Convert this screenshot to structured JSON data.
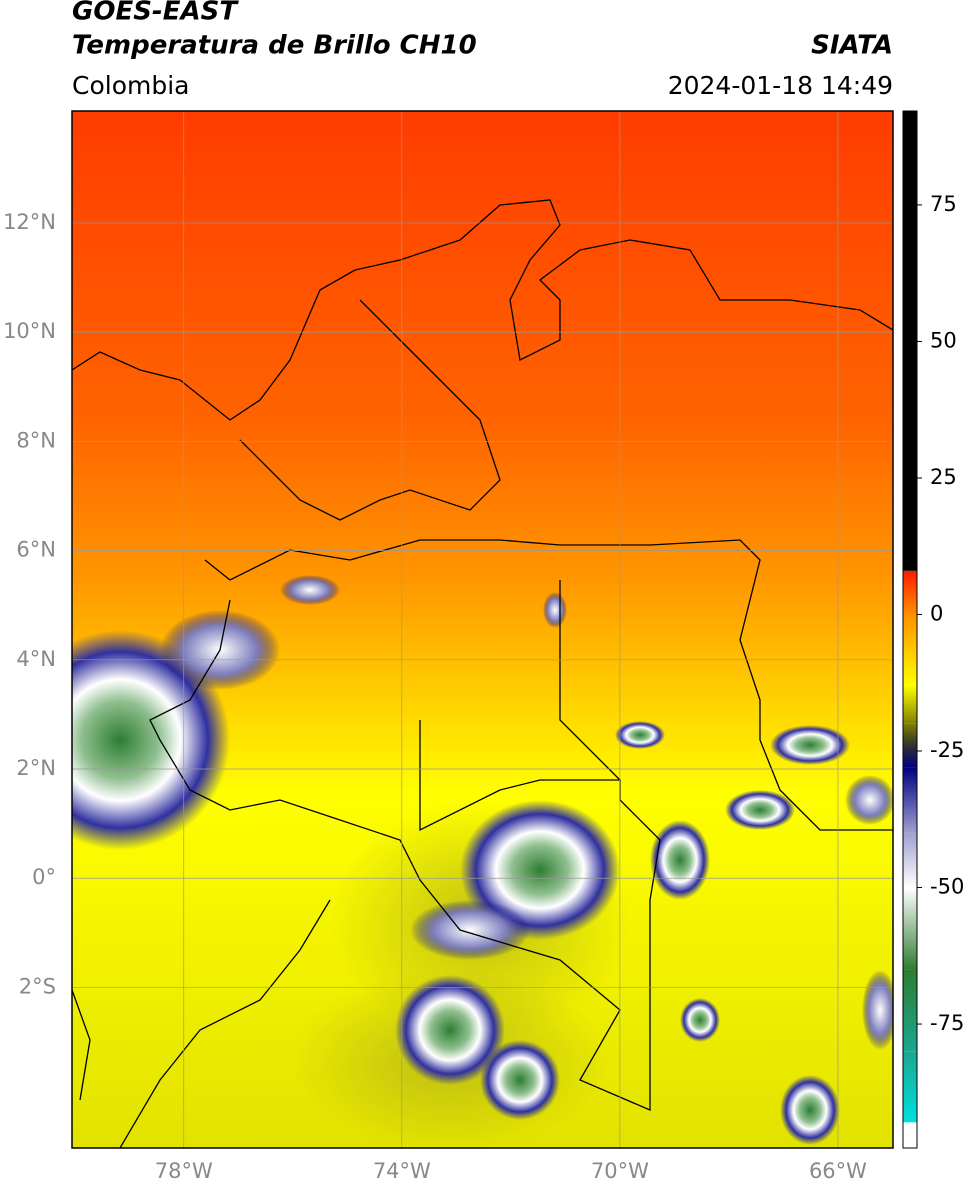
{
  "header": {
    "title": "GOES-EAST",
    "subtitle": "Temperatura de Brillo CH10",
    "source": "SIATA",
    "region": "Colombia",
    "timestamp": "2024-01-18 14:49"
  },
  "map": {
    "xlim": [
      -80.05,
      -64.99
    ],
    "ylim": [
      -4.94,
      14.05
    ],
    "xticks": [
      {
        "value": -78,
        "label": "78°W"
      },
      {
        "value": -74,
        "label": "74°W"
      },
      {
        "value": -70,
        "label": "70°W"
      },
      {
        "value": -66,
        "label": "66°W"
      }
    ],
    "yticks": [
      {
        "value": 12,
        "label": "12°N"
      },
      {
        "value": 10,
        "label": "10°N"
      },
      {
        "value": 8,
        "label": "8°N"
      },
      {
        "value": 6,
        "label": "6°N"
      },
      {
        "value": 4,
        "label": "4°N"
      },
      {
        "value": 2,
        "label": "2°N"
      },
      {
        "value": 0,
        "label": "0°"
      },
      {
        "value": -2,
        "label": "2°S"
      }
    ],
    "grid": true,
    "colorbar": {
      "lim": [
        -97.7,
        92.2
      ],
      "ticks": [
        75,
        50,
        25,
        0,
        -25,
        -50,
        -75
      ],
      "colormap": [
        {
          "value": -97.7,
          "color": "#ffffff"
        },
        {
          "value": -93,
          "color": "#ffffff"
        },
        {
          "value": -93,
          "color": "#00e0e0"
        },
        {
          "value": -80,
          "color": "#1aa890"
        },
        {
          "value": -65,
          "color": "#2e7d32"
        },
        {
          "value": -50,
          "color": "#ffffff"
        },
        {
          "value": -40,
          "color": "#a0a0d0"
        },
        {
          "value": -28,
          "color": "#000080"
        },
        {
          "value": -24,
          "color": "#303030"
        },
        {
          "value": -20,
          "color": "#808000"
        },
        {
          "value": -13,
          "color": "#ffff00"
        },
        {
          "value": 0,
          "color": "#ff9000"
        },
        {
          "value": 8,
          "color": "#ff1a00"
        },
        {
          "value": 8,
          "color": "#000000"
        },
        {
          "value": 92.2,
          "color": "#000000"
        }
      ]
    }
  }
}
